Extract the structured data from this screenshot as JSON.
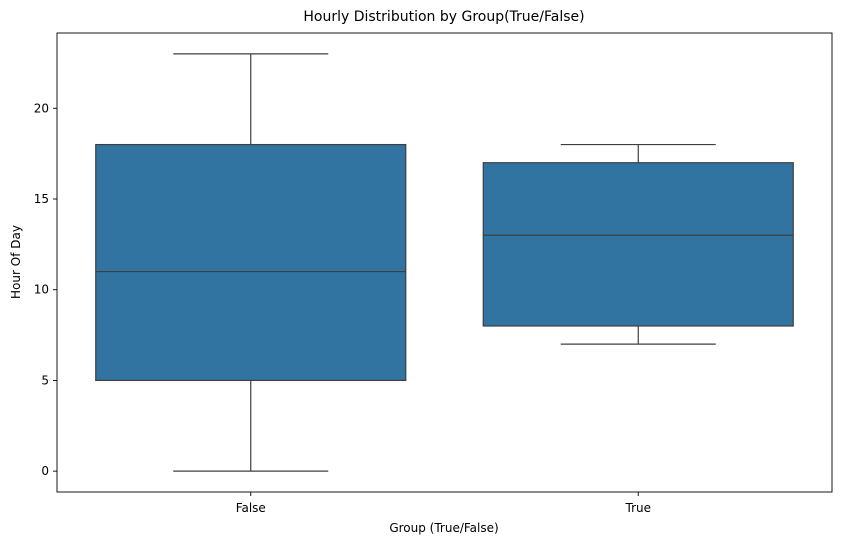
{
  "chart_data": {
    "type": "box",
    "title": "Hourly Distribution by Group(True/False)",
    "xlabel": "Group (True/False)",
    "ylabel": "Hour Of Day",
    "categories": [
      "False",
      "True"
    ],
    "boxes": [
      {
        "category": "False",
        "whisker_low": 0,
        "q1": 5,
        "median": 11,
        "q3": 18,
        "whisker_high": 23
      },
      {
        "category": "True",
        "whisker_low": 7,
        "q1": 8,
        "median": 13,
        "q3": 17,
        "whisker_high": 18
      }
    ],
    "yticks": [
      0,
      5,
      10,
      15,
      20
    ],
    "ylim": [
      -1.15,
      24.15
    ],
    "grid": false,
    "box_color": "#3274a1",
    "line_color": "#3f3f3f"
  }
}
